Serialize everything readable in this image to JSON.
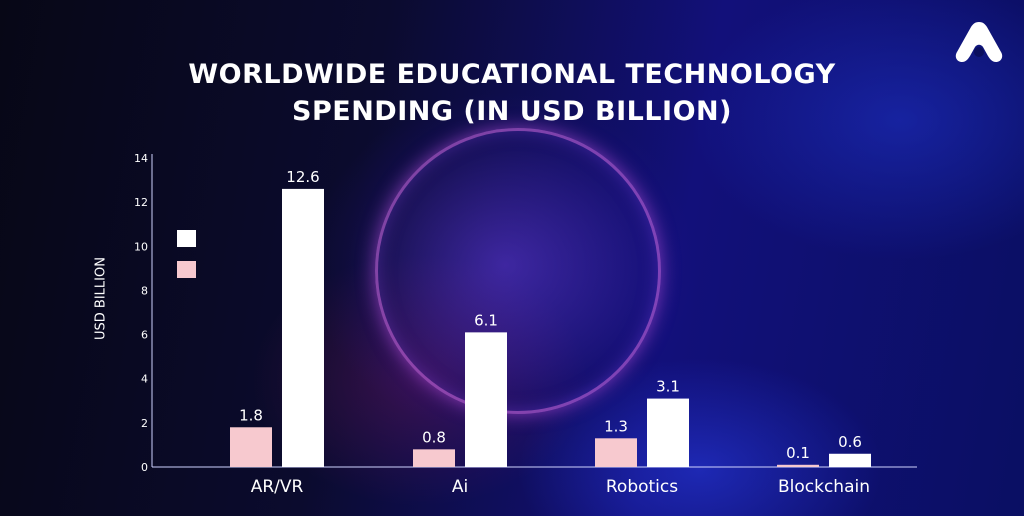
{
  "header": {
    "title_line1": "WORLDWIDE EDUCATIONAL TECHNOLOGY",
    "title_line2": "SPENDING (IN USD BILLION)"
  },
  "colors": {
    "series_pink": "#f7c9cf",
    "series_white": "#ffffff",
    "text": "#ffffff",
    "accent_ring": "#d76eeb"
  },
  "logo": {
    "icon": "brand-logo-icon"
  },
  "chart_data": {
    "type": "bar",
    "title": "WORLDWIDE EDUCATIONAL TECHNOLOGY SPENDING (IN USD BILLION)",
    "xlabel": "",
    "ylabel": "USD BILLION",
    "ylim": [
      0,
      14
    ],
    "yticks": [
      0,
      2,
      4,
      6,
      8,
      10,
      12,
      14
    ],
    "categories": [
      "AR/VR",
      "Ai",
      "Robotics",
      "Blockchain"
    ],
    "series": [
      {
        "color": "#f7c9cf",
        "values": [
          1.8,
          0.8,
          1.3,
          0.1
        ],
        "labels": [
          "1.8",
          "0.8",
          "1.3",
          "0.1"
        ]
      },
      {
        "color": "#ffffff",
        "values": [
          12.6,
          6.1,
          3.1,
          0.6
        ],
        "labels": [
          "12.6",
          "6.1",
          "3.1",
          "0.6"
        ]
      }
    ],
    "legend": {
      "position": "top-left",
      "entries": [
        "",
        ""
      ]
    },
    "grid": false
  }
}
